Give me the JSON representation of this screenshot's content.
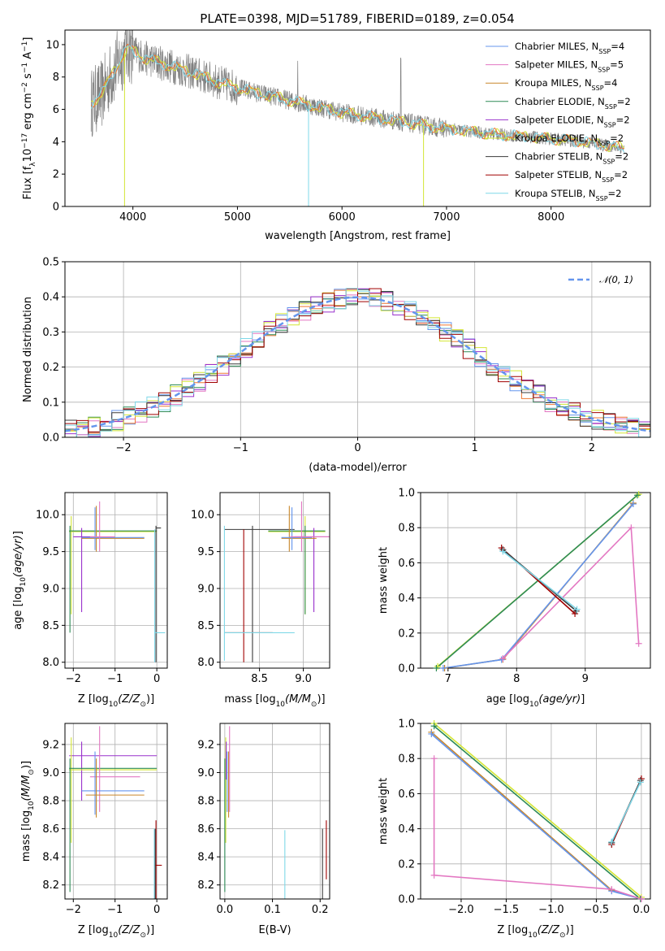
{
  "figure_title": "PLATE=0398, MJD=51789, FIBERID=0189, z=0.054",
  "colors": {
    "data": "#808080",
    "Chabrier MILES": "#6495ed",
    "Salpeter MILES": "#e377c2",
    "Kroupa MILES": "#c9872b",
    "Chabrier ELODIE": "#2e8b57",
    "Salpeter ELODIE": "#9932cc",
    "Kroupa ELODIE": "#d4e635",
    "Chabrier STELIB": "#3a3a3a",
    "Salpeter STELIB": "#a00000",
    "Kroupa STELIB": "#7fd8e8",
    "orange": "#ee7733",
    "normal": "#6495ed"
  },
  "chart_data": [
    {
      "id": "spectrum",
      "type": "line",
      "xlabel": "wavelength [Angstrom, rest frame]",
      "ylabel": "Flux [f_λ10^-17 erg cm^-2 s^-1 A^-1]",
      "xlim": [
        3350,
        8950
      ],
      "ylim": [
        0,
        10.9
      ],
      "xticks": [
        4000,
        5000,
        6000,
        7000,
        8000
      ],
      "yticks": [
        0,
        2,
        4,
        6,
        8,
        10
      ],
      "grid": false,
      "legend_position": "upper right",
      "legend": [
        {
          "model": "Chabrier MILES",
          "nssp": "4"
        },
        {
          "model": "Salpeter MILES",
          "nssp": "5"
        },
        {
          "model": "Kroupa MILES",
          "nssp": "4"
        },
        {
          "model": "Chabrier ELODIE",
          "nssp": "2"
        },
        {
          "model": "Salpeter ELODIE",
          "nssp": "2"
        },
        {
          "model": "Kroupa ELODIE",
          "nssp": "2"
        },
        {
          "model": "Chabrier STELIB",
          "nssp": "2"
        },
        {
          "model": "Salpeter STELIB",
          "nssp": "2"
        },
        {
          "model": "Kroupa STELIB",
          "nssp": "2"
        }
      ],
      "continuum": [
        [
          3600,
          6.4
        ],
        [
          3700,
          6.9
        ],
        [
          3800,
          8.2
        ],
        [
          3950,
          9.8
        ],
        [
          4100,
          9.2
        ],
        [
          4300,
          8.8
        ],
        [
          4600,
          8.2
        ],
        [
          4850,
          7.6
        ],
        [
          5200,
          7.0
        ],
        [
          5600,
          6.4
        ],
        [
          6000,
          5.8
        ],
        [
          6500,
          5.3
        ],
        [
          7000,
          4.8
        ],
        [
          7400,
          4.5
        ],
        [
          7800,
          4.3
        ],
        [
          8300,
          4.0
        ],
        [
          8700,
          3.6
        ]
      ]
    },
    {
      "id": "residuals",
      "type": "area",
      "xlabel": "(data-model)/error",
      "ylabel": "Normed distribution",
      "xlim": [
        -2.5,
        2.5
      ],
      "ylim": [
        0,
        0.5
      ],
      "xticks": [
        -2,
        -1,
        0,
        1,
        2
      ],
      "yticks": [
        0.0,
        0.1,
        0.2,
        0.3,
        0.4,
        0.5
      ],
      "grid": true,
      "legend_position": "upper right",
      "legend": [
        "N(0,1)"
      ],
      "curve": "standard normal, mean 0, sigma 1"
    },
    {
      "id": "age-vs-Z",
      "type": "scatter",
      "xlabel": "Z [log10(Z/Z⊙)]",
      "ylabel": "age  [log10(age/yr)]",
      "xlim": [
        -2.2,
        0.25
      ],
      "ylim": [
        7.92,
        10.3
      ],
      "xticks": [
        -2,
        -1,
        0
      ],
      "yticks": [
        8.0,
        8.5,
        9.0,
        9.5,
        10.0
      ],
      "grid": true,
      "crosses": [
        {
          "series": "Kroupa ELODIE",
          "h": [
            -2.1,
            0.0
          ],
          "y": 9.77,
          "v": [
            8.65,
            9.98
          ],
          "x": -2.05
        },
        {
          "series": "Chabrier ELODIE",
          "h": [
            -2.1,
            0.0
          ],
          "y": 9.78,
          "v": [
            8.4,
            9.85
          ],
          "x": -2.08
        },
        {
          "series": "Salpeter ELODIE",
          "h": [
            -2.0,
            -1.5
          ],
          "y": 9.7,
          "v": [
            8.68,
            9.82
          ],
          "x": -1.8
        },
        {
          "series": "Kroupa MILES",
          "h": [
            -1.8,
            -0.3
          ],
          "y": 9.68,
          "v": [
            9.5,
            10.12
          ],
          "x": -1.45
        },
        {
          "series": "Chabrier MILES",
          "h": [
            -1.8,
            -0.3
          ],
          "y": 9.69,
          "v": [
            9.52,
            10.1
          ],
          "x": -1.48
        },
        {
          "series": "Salpeter MILES",
          "h": [
            -1.6,
            -1.0
          ],
          "y": 9.7,
          "v": [
            9.5,
            10.18
          ],
          "x": -1.37
        },
        {
          "series": "Chabrier STELIB",
          "h": [
            -0.02,
            0.1
          ],
          "y": 9.82,
          "v": [
            8.0,
            9.85
          ],
          "x": -0.02
        },
        {
          "series": "Kroupa STELIB",
          "h": [
            -0.05,
            0.2
          ],
          "y": 8.4,
          "v": [
            8.0,
            9.8
          ],
          "x": -0.05
        }
      ]
    },
    {
      "id": "age-vs-mass",
      "type": "scatter",
      "xlabel": "mass [log10(M/M⊙)]",
      "ylabel": "",
      "xlim": [
        8.05,
        9.3
      ],
      "ylim": [
        7.92,
        10.3
      ],
      "xticks": [
        8.5,
        9.0
      ],
      "yticks": [
        8.0,
        8.5,
        9.0,
        9.5,
        10.0
      ],
      "grid": true,
      "crosses": [
        {
          "series": "Chabrier STELIB",
          "h": [
            8.1,
            8.9
          ],
          "y": 9.8,
          "v": [
            8.0,
            9.85
          ],
          "x": 8.42
        },
        {
          "series": "Salpeter STELIB",
          "h": [
            8.1,
            8.65
          ],
          "y": 8.4,
          "v": [
            8.0,
            9.8
          ],
          "x": 8.32
        },
        {
          "series": "Kroupa STELIB",
          "h": [
            8.1,
            8.9
          ],
          "y": 8.4,
          "v": [
            8.02,
            9.85
          ],
          "x": 8.1
        },
        {
          "series": "Kroupa ELODIE",
          "h": [
            8.6,
            9.25
          ],
          "y": 9.77,
          "v": [
            8.65,
            9.98
          ],
          "x": 9.02
        },
        {
          "series": "Chabrier ELODIE",
          "h": [
            8.6,
            9.25
          ],
          "y": 9.78,
          "v": [
            8.65,
            9.85
          ],
          "x": 9.02
        },
        {
          "series": "Salpeter ELODIE",
          "h": [
            8.9,
            9.35
          ],
          "y": 9.7,
          "v": [
            8.68,
            9.82
          ],
          "x": 9.12
        },
        {
          "series": "Kroupa MILES",
          "h": [
            8.75,
            9.15
          ],
          "y": 9.68,
          "v": [
            9.5,
            10.12
          ],
          "x": 8.84
        },
        {
          "series": "Chabrier MILES",
          "h": [
            8.75,
            9.1
          ],
          "y": 9.69,
          "v": [
            9.52,
            10.1
          ],
          "x": 8.87
        },
        {
          "series": "Salpeter MILES",
          "h": [
            8.85,
            9.3
          ],
          "y": 9.7,
          "v": [
            9.5,
            10.18
          ],
          "x": 8.98
        }
      ]
    },
    {
      "id": "weight-vs-age",
      "type": "line",
      "xlabel": "age  [log10(age/yr)]",
      "ylabel": "mass weight",
      "xlim": [
        6.6,
        9.95
      ],
      "ylim": [
        0,
        1
      ],
      "xticks": [
        7,
        8,
        9
      ],
      "yticks": [
        0.0,
        0.2,
        0.4,
        0.6,
        0.8,
        1.0
      ],
      "grid": true,
      "lines": [
        {
          "series": "Kroupa ELODIE",
          "points": [
            [
              6.85,
              0.01
            ],
            [
              9.78,
              0.99
            ]
          ]
        },
        {
          "series": "Chabrier ELODIE",
          "points": [
            [
              6.83,
              0.0
            ],
            [
              9.76,
              0.985
            ]
          ]
        },
        {
          "series": "Kroupa MILES",
          "points": [
            [
              6.95,
              0.0
            ],
            [
              7.8,
              0.05
            ],
            [
              9.7,
              0.94
            ]
          ]
        },
        {
          "series": "Chabrier MILES",
          "points": [
            [
              6.93,
              0.0
            ],
            [
              7.78,
              0.048
            ],
            [
              9.7,
              0.935
            ]
          ]
        },
        {
          "series": "Salpeter MILES",
          "points": [
            [
              7.8,
              0.055
            ],
            [
              9.67,
              0.8
            ],
            [
              9.78,
              0.14
            ]
          ]
        },
        {
          "series": "Salpeter STELIB",
          "points": [
            [
              7.78,
              0.685
            ],
            [
              8.85,
              0.31
            ]
          ]
        },
        {
          "series": "Chabrier STELIB",
          "points": [
            [
              7.8,
              0.675
            ],
            [
              8.87,
              0.325
            ]
          ]
        },
        {
          "series": "Kroupa STELIB",
          "points": [
            [
              7.8,
              0.665
            ],
            [
              8.88,
              0.335
            ]
          ]
        }
      ]
    },
    {
      "id": "mass-vs-Z",
      "type": "scatter",
      "xlabel": "Z [log10(Z/Z⊙)]",
      "ylabel": "mass [log10(M/M⊙)]",
      "xlim": [
        -2.2,
        0.25
      ],
      "ylim": [
        8.1,
        9.35
      ],
      "xticks": [
        -2,
        -1,
        0
      ],
      "yticks": [
        8.2,
        8.4,
        8.6,
        8.8,
        9.0,
        9.2
      ],
      "grid": true,
      "crosses": [
        {
          "series": "Salpeter ELODIE",
          "h": [
            -2.1,
            0.0
          ],
          "y": 9.12,
          "v": [
            8.8,
            9.22
          ],
          "x": -1.8
        },
        {
          "series": "Kroupa ELODIE",
          "h": [
            -2.1,
            0.0
          ],
          "y": 9.02,
          "v": [
            8.5,
            9.25
          ],
          "x": -2.05
        },
        {
          "series": "Chabrier ELODIE",
          "h": [
            -2.1,
            0.0
          ],
          "y": 9.03,
          "v": [
            8.15,
            9.1
          ],
          "x": -2.08
        },
        {
          "series": "Salpeter MILES",
          "h": [
            -1.6,
            -0.4
          ],
          "y": 8.97,
          "v": [
            8.72,
            9.33
          ],
          "x": -1.37
        },
        {
          "series": "Chabrier MILES",
          "h": [
            -1.8,
            -0.3
          ],
          "y": 8.87,
          "v": [
            8.7,
            9.15
          ],
          "x": -1.48
        },
        {
          "series": "Kroupa MILES",
          "h": [
            -1.7,
            -0.3
          ],
          "y": 8.84,
          "v": [
            8.68,
            9.1
          ],
          "x": -1.45
        },
        {
          "series": "Salpeter STELIB",
          "h": [
            -0.05,
            0.12
          ],
          "y": 8.34,
          "v": [
            8.1,
            8.66
          ],
          "x": -0.02
        },
        {
          "series": "Chabrier STELIB",
          "h": [
            -0.05,
            0.1
          ],
          "y": 8.1,
          "v": [
            8.1,
            8.6
          ],
          "x": -0.04
        },
        {
          "series": "Kroupa STELIB",
          "h": [
            -0.08,
            0.1
          ],
          "y": 8.09,
          "v": [
            8.1,
            8.6
          ],
          "x": -0.06
        }
      ]
    },
    {
      "id": "mass-vs-ebv",
      "type": "scatter",
      "xlabel": "E(B-V)",
      "ylabel": "",
      "xlim": [
        -0.01,
        0.22
      ],
      "ylim": [
        8.1,
        9.35
      ],
      "xticks": [
        0.0,
        0.1,
        0.2
      ],
      "yticks": [
        8.2,
        8.4,
        8.6,
        8.8,
        9.0,
        9.2
      ],
      "grid": true,
      "vlines": [
        {
          "series": "Chabrier ELODIE",
          "x": 0.0,
          "v": [
            8.15,
            9.1
          ]
        },
        {
          "series": "Kroupa ELODIE",
          "x": 0.002,
          "v": [
            8.5,
            9.25
          ]
        },
        {
          "series": "Salpeter ELODIE",
          "x": 0.003,
          "v": [
            8.95,
            9.22
          ]
        },
        {
          "series": "Chabrier MILES",
          "x": 0.005,
          "v": [
            8.72,
            9.15
          ]
        },
        {
          "series": "Kroupa MILES",
          "x": 0.008,
          "v": [
            8.68,
            9.15
          ]
        },
        {
          "series": "Salpeter MILES",
          "x": 0.01,
          "v": [
            8.72,
            9.33
          ]
        },
        {
          "series": "Kroupa STELIB",
          "x": 0.126,
          "v": [
            8.1,
            8.59
          ]
        },
        {
          "series": "Chabrier STELIB",
          "x": 0.205,
          "v": [
            8.1,
            8.6
          ]
        },
        {
          "series": "Salpeter STELIB",
          "x": 0.213,
          "v": [
            8.24,
            8.66
          ]
        }
      ]
    },
    {
      "id": "weight-vs-Z",
      "type": "line",
      "xlabel": "Z [log10(Z/Z⊙)]",
      "ylabel": "mass weight",
      "xlim": [
        -2.45,
        0.1
      ],
      "ylim": [
        0,
        1
      ],
      "xticks": [
        -2.0,
        -1.5,
        -1.0,
        -0.5,
        0.0
      ],
      "yticks": [
        0.0,
        0.2,
        0.4,
        0.6,
        0.8,
        1.0
      ],
      "grid": true,
      "lines": [
        {
          "series": "Kroupa ELODIE",
          "points": [
            [
              -2.3,
              1.0
            ],
            [
              0.0,
              0.01
            ]
          ]
        },
        {
          "series": "Chabrier ELODIE",
          "points": [
            [
              -2.3,
              0.985
            ],
            [
              -0.01,
              0.0
            ]
          ]
        },
        {
          "series": "Kroupa MILES",
          "points": [
            [
              -2.33,
              0.95
            ],
            [
              -0.33,
              0.05
            ],
            [
              0.0,
              0.0
            ]
          ]
        },
        {
          "series": "Chabrier MILES",
          "points": [
            [
              -2.33,
              0.94
            ],
            [
              -0.33,
              0.045
            ],
            [
              0.0,
              0.0
            ]
          ]
        },
        {
          "series": "Salpeter MILES",
          "points": [
            [
              -2.3,
              0.8
            ],
            [
              -2.3,
              0.135
            ],
            [
              -0.33,
              0.055
            ],
            [
              0.0,
              0.0
            ]
          ]
        },
        {
          "series": "Salpeter STELIB",
          "points": [
            [
              -0.33,
              0.31
            ],
            [
              0.0,
              0.685
            ]
          ]
        },
        {
          "series": "Chabrier STELIB",
          "points": [
            [
              -0.33,
              0.32
            ],
            [
              -0.01,
              0.675
            ]
          ]
        },
        {
          "series": "Kroupa STELIB",
          "points": [
            [
              -0.33,
              0.325
            ],
            [
              -0.01,
              0.665
            ]
          ]
        }
      ]
    }
  ]
}
